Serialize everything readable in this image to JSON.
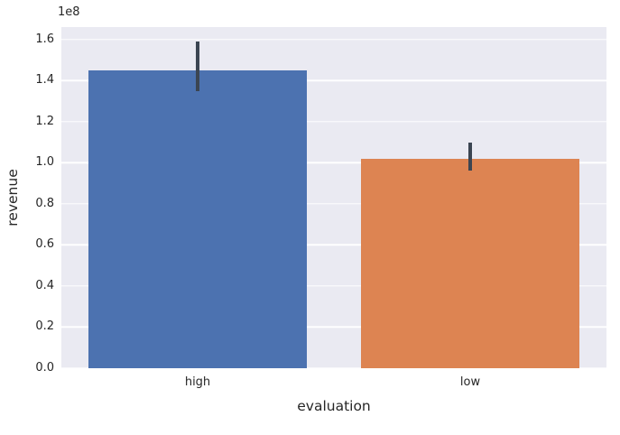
{
  "chart_data": {
    "type": "bar",
    "title": "",
    "xlabel": "evaluation",
    "ylabel": "revenue",
    "offset_text": "1e8",
    "categories": [
      "high",
      "low"
    ],
    "values": [
      145000000,
      102000000
    ],
    "errors": [
      [
        135000000,
        159000000
      ],
      [
        96000000,
        110000000
      ]
    ],
    "ylim": [
      0,
      166000000
    ],
    "ytick_values": [
      0,
      20000000,
      40000000,
      60000000,
      80000000,
      100000000,
      120000000,
      140000000,
      160000000
    ],
    "ytick_labels": [
      "0.0",
      "0.2",
      "0.4",
      "0.6",
      "0.8",
      "1.0",
      "1.2",
      "1.4",
      "1.6"
    ],
    "bar_colors": [
      "#4c72b0",
      "#dd8452"
    ],
    "errorbar_color": "#3b4552",
    "plot_bg": "#eaeaf2",
    "grid_color": "#ffffff",
    "grid": true,
    "legend": "none"
  }
}
